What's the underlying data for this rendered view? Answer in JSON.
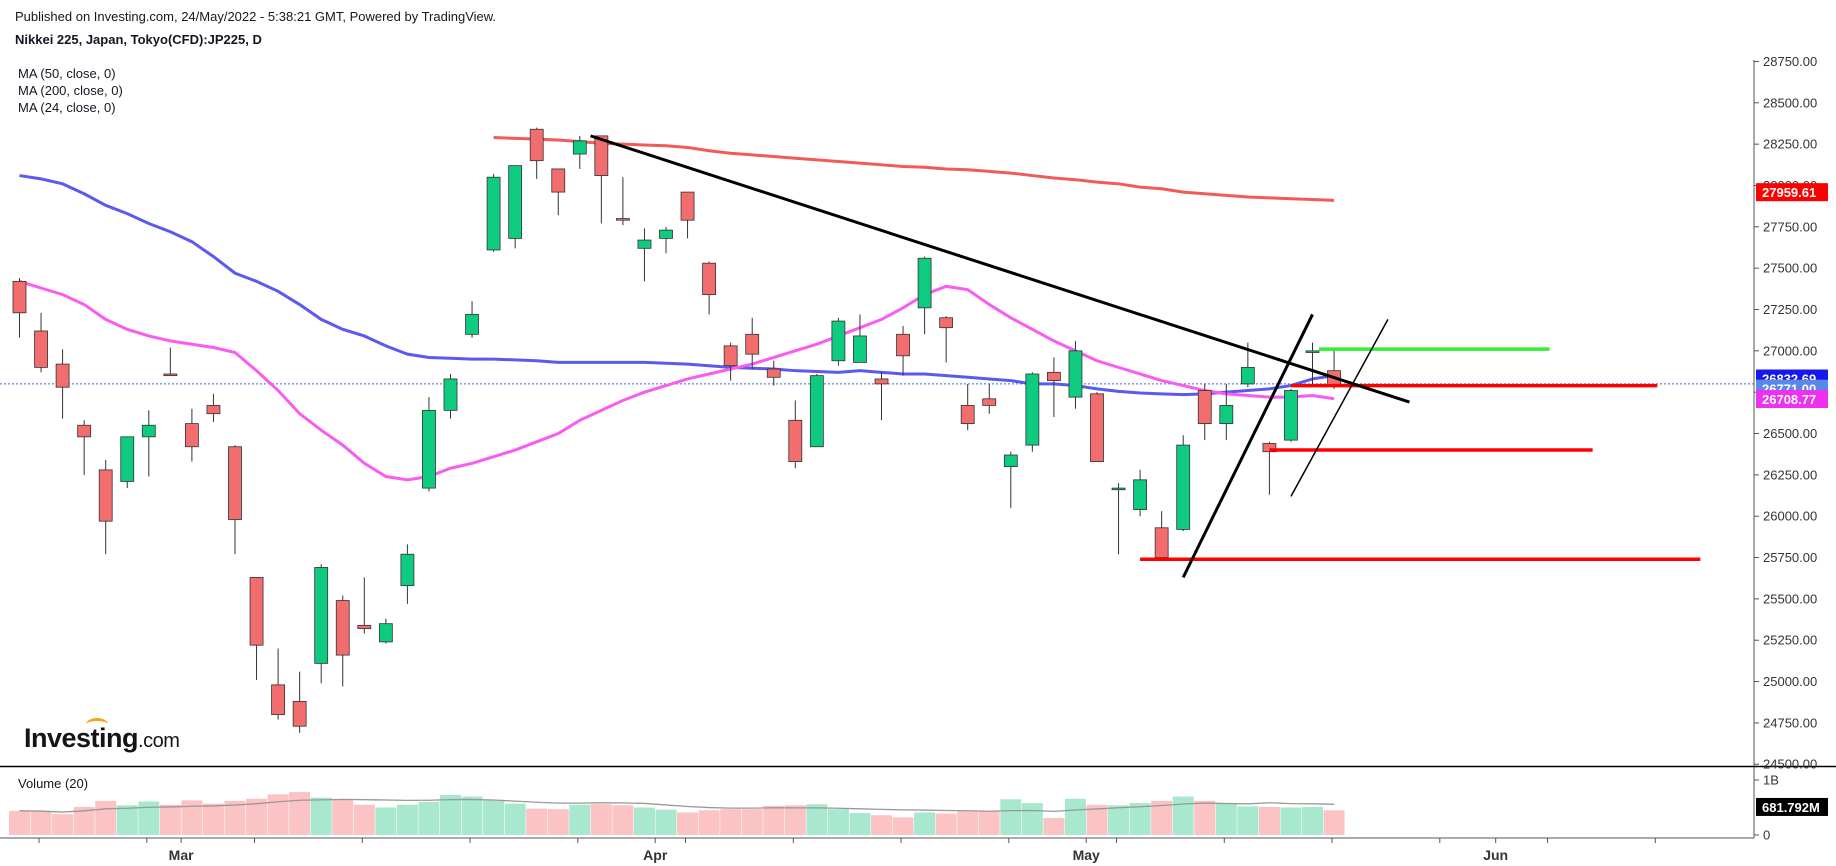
{
  "header": {
    "published": "Published on Investing.com, 24/May/2022 - 5:38:21 GMT, Powered by TradingView.",
    "symbol": "Nikkei 225, Japan, Tokyo(CFD):JP225, D"
  },
  "indicators": {
    "ma50": "MA (50, close, 0)",
    "ma200": "MA (200, close, 0)",
    "ma24": "MA (24, close, 0)",
    "volume": "Volume (20)"
  },
  "logo": {
    "brand": "Investing",
    "suffix": ".com"
  },
  "colors": {
    "up": "#0fcb80",
    "down": "#f26d6d",
    "ma50": "#5a5aee",
    "ma200": "#f25a5a",
    "ma24": "#f85cf0",
    "vol_up": "#a7e8ce",
    "vol_down": "#fbc3c3",
    "trend": "#000000",
    "support": "#ff0000",
    "resistance": "#33ee33"
  },
  "chart_data": {
    "type": "candlestick",
    "title": "Nikkei 225, Japan, Tokyo(CFD):JP225, D",
    "ylim": [
      24500,
      28750
    ],
    "yticks": [
      28750,
      28500,
      28250,
      28000,
      27750,
      27500,
      27250,
      27000,
      26750,
      26500,
      26250,
      26000,
      25750,
      25500,
      25250,
      25000,
      24750,
      24500
    ],
    "ytick_labels": [
      "28750.00",
      "28500.00",
      "28250.00",
      "28000.00",
      "27750.00",
      "27500.00",
      "27250.00",
      "27000.00",
      "26750.00",
      "26500.00",
      "26250.00",
      "26000.00",
      "25750.00",
      "25500.00",
      "25250.00",
      "25000.00",
      "24750.00",
      "24500.00"
    ],
    "xtick_labels": [
      {
        "label": "Mar",
        "bar": 7.5
      },
      {
        "label": "Apr",
        "bar": 29.5
      },
      {
        "label": "May",
        "bar": 49.5
      },
      {
        "label": "Jun",
        "bar": 68.5
      }
    ],
    "candles": [
      {
        "o": 27420,
        "h": 27440,
        "l": 27080,
        "c": 27230
      },
      {
        "o": 27120,
        "h": 27230,
        "l": 26870,
        "c": 26900
      },
      {
        "o": 26920,
        "h": 27010,
        "l": 26590,
        "c": 26780
      },
      {
        "o": 26550,
        "h": 26580,
        "l": 26250,
        "c": 26480
      },
      {
        "o": 26280,
        "h": 26340,
        "l": 25770,
        "c": 25970
      },
      {
        "o": 26210,
        "h": 26480,
        "l": 26170,
        "c": 26480
      },
      {
        "o": 26480,
        "h": 26640,
        "l": 26240,
        "c": 26550
      },
      {
        "o": 26860,
        "h": 27020,
        "l": 26850,
        "c": 26850
      },
      {
        "o": 26560,
        "h": 26650,
        "l": 26330,
        "c": 26420
      },
      {
        "o": 26670,
        "h": 26740,
        "l": 26570,
        "c": 26620
      },
      {
        "o": 26420,
        "h": 26430,
        "l": 25770,
        "c": 25980
      },
      {
        "o": 25630,
        "h": 25630,
        "l": 25010,
        "c": 25220
      },
      {
        "o": 24980,
        "h": 25200,
        "l": 24770,
        "c": 24800
      },
      {
        "o": 24880,
        "h": 25060,
        "l": 24690,
        "c": 24730
      },
      {
        "o": 25110,
        "h": 25710,
        "l": 24990,
        "c": 25690
      },
      {
        "o": 25490,
        "h": 25520,
        "l": 24970,
        "c": 25160
      },
      {
        "o": 25340,
        "h": 25630,
        "l": 25290,
        "c": 25320
      },
      {
        "o": 25240,
        "h": 25380,
        "l": 25230,
        "c": 25350
      },
      {
        "o": 25580,
        "h": 25830,
        "l": 25470,
        "c": 25770
      },
      {
        "o": 26170,
        "h": 26720,
        "l": 26150,
        "c": 26640
      },
      {
        "o": 26640,
        "h": 26860,
        "l": 26590,
        "c": 26830
      },
      {
        "o": 27100,
        "h": 27300,
        "l": 27080,
        "c": 27220
      },
      {
        "o": 27610,
        "h": 28070,
        "l": 27600,
        "c": 28050
      },
      {
        "o": 27680,
        "h": 28120,
        "l": 27620,
        "c": 28120
      },
      {
        "o": 28340,
        "h": 28350,
        "l": 28040,
        "c": 28150
      },
      {
        "o": 28100,
        "h": 28100,
        "l": 27820,
        "c": 27960
      },
      {
        "o": 28190,
        "h": 28300,
        "l": 28100,
        "c": 28270
      },
      {
        "o": 28300,
        "h": 28300,
        "l": 27770,
        "c": 28060
      },
      {
        "o": 27800,
        "h": 28050,
        "l": 27760,
        "c": 27790
      },
      {
        "o": 27620,
        "h": 27740,
        "l": 27420,
        "c": 27670
      },
      {
        "o": 27680,
        "h": 27750,
        "l": 27590,
        "c": 27730
      },
      {
        "o": 27960,
        "h": 27960,
        "l": 27680,
        "c": 27790
      },
      {
        "o": 27530,
        "h": 27540,
        "l": 27220,
        "c": 27340
      },
      {
        "o": 27030,
        "h": 27050,
        "l": 26820,
        "c": 26910
      },
      {
        "o": 27100,
        "h": 27200,
        "l": 26890,
        "c": 26980
      },
      {
        "o": 26890,
        "h": 26940,
        "l": 26790,
        "c": 26840
      },
      {
        "o": 26580,
        "h": 26700,
        "l": 26290,
        "c": 26330
      },
      {
        "o": 26420,
        "h": 26860,
        "l": 26420,
        "c": 26850
      },
      {
        "o": 26940,
        "h": 27200,
        "l": 26910,
        "c": 27180
      },
      {
        "o": 26930,
        "h": 27220,
        "l": 26930,
        "c": 27090
      },
      {
        "o": 26830,
        "h": 26870,
        "l": 26580,
        "c": 26800
      },
      {
        "o": 27100,
        "h": 27150,
        "l": 26850,
        "c": 26970
      },
      {
        "o": 27260,
        "h": 27570,
        "l": 27100,
        "c": 27560
      },
      {
        "o": 27200,
        "h": 27210,
        "l": 26930,
        "c": 27140
      },
      {
        "o": 26670,
        "h": 26800,
        "l": 26520,
        "c": 26560
      },
      {
        "o": 26710,
        "h": 26800,
        "l": 26620,
        "c": 26670
      },
      {
        "o": 26300,
        "h": 26390,
        "l": 26050,
        "c": 26370
      },
      {
        "o": 26430,
        "h": 26870,
        "l": 26390,
        "c": 26860
      },
      {
        "o": 26870,
        "h": 26960,
        "l": 26600,
        "c": 26820
      },
      {
        "o": 26720,
        "h": 27060,
        "l": 26650,
        "c": 27000
      },
      {
        "o": 26740,
        "h": 26750,
        "l": 26330,
        "c": 26330
      },
      {
        "o": 26160,
        "h": 26200,
        "l": 25770,
        "c": 26170
      },
      {
        "o": 26040,
        "h": 26280,
        "l": 26000,
        "c": 26220
      },
      {
        "o": 25930,
        "h": 26030,
        "l": 25730,
        "c": 25750
      },
      {
        "o": 25920,
        "h": 26490,
        "l": 25910,
        "c": 26430
      },
      {
        "o": 26760,
        "h": 26800,
        "l": 26460,
        "c": 26560
      },
      {
        "o": 26560,
        "h": 26800,
        "l": 26460,
        "c": 26670
      },
      {
        "o": 26800,
        "h": 27050,
        "l": 26780,
        "c": 26900
      },
      {
        "o": 26440,
        "h": 26450,
        "l": 26130,
        "c": 26390
      },
      {
        "o": 26460,
        "h": 26770,
        "l": 26450,
        "c": 26760
      },
      {
        "o": 26990,
        "h": 27050,
        "l": 26800,
        "c": 27000
      },
      {
        "o": 26880,
        "h": 27010,
        "l": 26770,
        "c": 26790
      }
    ],
    "ma50": [
      28060,
      28040,
      28010,
      27950,
      27880,
      27830,
      27770,
      27720,
      27660,
      27570,
      27470,
      27420,
      27360,
      27280,
      27190,
      27130,
      27090,
      27030,
      26980,
      26960,
      26955,
      26950,
      26950,
      26945,
      26940,
      26930,
      26930,
      26930,
      26930,
      26930,
      26925,
      26920,
      26910,
      26900,
      26895,
      26890,
      26880,
      26875,
      26870,
      26880,
      26870,
      26860,
      26860,
      26850,
      26840,
      26830,
      26820,
      26800,
      26800,
      26790,
      26770,
      26755,
      26745,
      26740,
      26735,
      26740,
      26750,
      26760,
      26770,
      26790,
      26830,
      26850
    ],
    "ma200": [
      null,
      null,
      null,
      null,
      null,
      null,
      null,
      null,
      null,
      null,
      null,
      null,
      null,
      null,
      null,
      null,
      null,
      null,
      null,
      null,
      null,
      null,
      28290,
      28285,
      28280,
      28275,
      28265,
      28255,
      28250,
      28245,
      28240,
      28230,
      28210,
      28195,
      28185,
      28175,
      28165,
      28155,
      28145,
      28135,
      28125,
      28115,
      28110,
      28100,
      28095,
      28085,
      28075,
      28060,
      28045,
      28035,
      28020,
      28010,
      27990,
      27980,
      27960,
      27950,
      27940,
      27930,
      27925,
      27920,
      27915,
      27910
    ],
    "ma24": [
      27420,
      27380,
      27340,
      27280,
      27190,
      27130,
      27090,
      27060,
      27040,
      27020,
      26990,
      26880,
      26760,
      26620,
      26520,
      26430,
      26320,
      26240,
      26220,
      26240,
      26290,
      26320,
      26360,
      26400,
      26450,
      26500,
      26580,
      26640,
      26700,
      26750,
      26790,
      26830,
      26860,
      26890,
      26920,
      26960,
      27000,
      27040,
      27090,
      27140,
      27190,
      27260,
      27340,
      27390,
      27370,
      27280,
      27200,
      27130,
      27060,
      27000,
      26940,
      26900,
      26860,
      26820,
      26790,
      26760,
      26740,
      26730,
      26720,
      26720,
      26730,
      26710
    ],
    "volume_tick_labels": [
      "1B",
      "0"
    ],
    "volume": [
      0.44,
      0.43,
      0.38,
      0.51,
      0.62,
      0.54,
      0.61,
      0.55,
      0.63,
      0.57,
      0.62,
      0.66,
      0.74,
      0.78,
      0.68,
      0.64,
      0.55,
      0.5,
      0.55,
      0.6,
      0.73,
      0.7,
      0.64,
      0.57,
      0.48,
      0.47,
      0.55,
      0.56,
      0.54,
      0.5,
      0.46,
      0.41,
      0.45,
      0.47,
      0.47,
      0.53,
      0.54,
      0.56,
      0.47,
      0.4,
      0.36,
      0.32,
      0.41,
      0.39,
      0.43,
      0.44,
      0.65,
      0.58,
      0.31,
      0.66,
      0.55,
      0.54,
      0.58,
      0.62,
      0.7,
      0.62,
      0.57,
      0.52,
      0.51,
      0.5,
      0.51,
      0.45
    ],
    "price_labels": [
      {
        "value": 27959.61,
        "text": "27959.61",
        "color": "#ff0000"
      },
      {
        "value": 26832.69,
        "text": "26832.69",
        "color": "#1818ee"
      },
      {
        "value": 26771.0,
        "text": "26771.00",
        "color": "#5a88e8"
      },
      {
        "value": 26708.77,
        "text": "26708.77",
        "color": "#f030f0"
      }
    ],
    "volume_label": "681.792M",
    "current_price": 26800,
    "trendlines": [
      {
        "from": {
          "bar": 26.5,
          "price": 28300
        },
        "to": {
          "bar": 64.5,
          "price": 26690
        },
        "width": 3,
        "color": "#000000"
      },
      {
        "from": {
          "bar": 54.0,
          "price": 25630
        },
        "to": {
          "bar": 60.0,
          "price": 27220
        },
        "width": 3,
        "color": "#000000"
      },
      {
        "from": {
          "bar": 59.0,
          "price": 26120
        },
        "to": {
          "bar": 63.5,
          "price": 27190
        },
        "width": 1.5,
        "color": "#000000"
      }
    ],
    "levels": [
      {
        "price": 27010,
        "from": 60.3,
        "to": 71.0,
        "color": "#33ee33"
      },
      {
        "price": 26790,
        "from": 59.0,
        "to": 76.0,
        "color": "#ff0000"
      },
      {
        "price": 26400,
        "from": 58.0,
        "to": 73.0,
        "color": "#ff0000"
      },
      {
        "price": 25740,
        "from": 52.0,
        "to": 78.0,
        "color": "#ff0000"
      }
    ]
  }
}
